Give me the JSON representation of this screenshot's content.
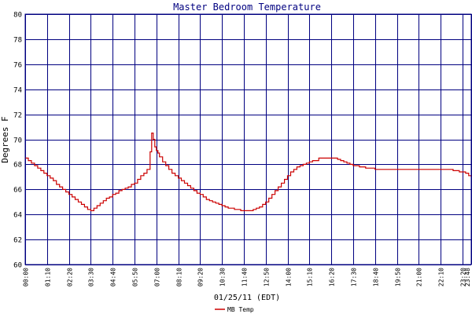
{
  "chart_data": {
    "type": "line",
    "title": "Master Bedroom Temperature",
    "xlabel": "01/25/11 (EDT)",
    "ylabel": "Degrees F",
    "xlim": [
      0,
      1428
    ],
    "ylim": [
      60,
      80
    ],
    "grid": true,
    "legend_position": "bottom-center",
    "yticks": [
      60,
      62,
      64,
      66,
      68,
      70,
      72,
      74,
      76,
      78,
      80
    ],
    "xticks": [
      {
        "t": 0,
        "label": "00:00"
      },
      {
        "t": 70,
        "label": "01:10"
      },
      {
        "t": 140,
        "label": "02:20"
      },
      {
        "t": 210,
        "label": "03:30"
      },
      {
        "t": 280,
        "label": "04:40"
      },
      {
        "t": 350,
        "label": "05:50"
      },
      {
        "t": 420,
        "label": "07:00"
      },
      {
        "t": 490,
        "label": "08:10"
      },
      {
        "t": 560,
        "label": "09:20"
      },
      {
        "t": 630,
        "label": "10:30"
      },
      {
        "t": 700,
        "label": "11:40"
      },
      {
        "t": 770,
        "label": "12:50"
      },
      {
        "t": 840,
        "label": "14:00"
      },
      {
        "t": 910,
        "label": "15:10"
      },
      {
        "t": 980,
        "label": "16:20"
      },
      {
        "t": 1050,
        "label": "17:30"
      },
      {
        "t": 1120,
        "label": "18:40"
      },
      {
        "t": 1190,
        "label": "19:50"
      },
      {
        "t": 1260,
        "label": "21:00"
      },
      {
        "t": 1330,
        "label": "22:10"
      },
      {
        "t": 1400,
        "label": "23:20"
      },
      {
        "t": 1428,
        "label": "23:48"
      }
    ],
    "series": [
      {
        "name": "MB Temp",
        "color": "#cc0000",
        "x": [
          0,
          10,
          20,
          30,
          40,
          50,
          60,
          70,
          80,
          90,
          100,
          110,
          120,
          130,
          140,
          150,
          160,
          170,
          180,
          190,
          200,
          210,
          220,
          230,
          240,
          250,
          260,
          270,
          280,
          290,
          300,
          310,
          320,
          330,
          340,
          350,
          360,
          370,
          380,
          390,
          400,
          405,
          410,
          415,
          420,
          425,
          430,
          440,
          450,
          460,
          470,
          480,
          490,
          500,
          510,
          520,
          530,
          540,
          550,
          560,
          570,
          580,
          590,
          600,
          610,
          620,
          630,
          640,
          650,
          660,
          670,
          680,
          690,
          700,
          710,
          720,
          730,
          740,
          750,
          760,
          770,
          780,
          790,
          800,
          810,
          820,
          830,
          840,
          850,
          860,
          870,
          880,
          890,
          900,
          910,
          920,
          930,
          940,
          950,
          960,
          970,
          980,
          990,
          1000,
          1010,
          1020,
          1030,
          1040,
          1050,
          1060,
          1070,
          1080,
          1090,
          1100,
          1110,
          1120,
          1130,
          1140,
          1150,
          1160,
          1170,
          1180,
          1190,
          1200,
          1210,
          1220,
          1230,
          1240,
          1250,
          1260,
          1270,
          1280,
          1290,
          1300,
          1310,
          1320,
          1330,
          1340,
          1350,
          1360,
          1370,
          1380,
          1390,
          1400,
          1410,
          1420,
          1428
        ],
        "y": [
          68.5,
          68.3,
          68.1,
          67.9,
          67.7,
          67.5,
          67.3,
          67.1,
          66.9,
          66.7,
          66.4,
          66.2,
          66.0,
          65.8,
          65.6,
          65.4,
          65.2,
          65.0,
          64.8,
          64.6,
          64.4,
          64.3,
          64.5,
          64.7,
          64.9,
          65.1,
          65.3,
          65.4,
          65.6,
          65.7,
          65.9,
          66.0,
          66.1,
          66.2,
          66.4,
          66.5,
          66.8,
          67.1,
          67.3,
          67.6,
          69.0,
          70.5,
          70.0,
          69.4,
          69.1,
          68.9,
          68.6,
          68.2,
          67.9,
          67.6,
          67.3,
          67.1,
          66.9,
          66.7,
          66.5,
          66.3,
          66.1,
          65.9,
          65.7,
          65.6,
          65.4,
          65.2,
          65.1,
          65.0,
          64.9,
          64.8,
          64.7,
          64.6,
          64.5,
          64.5,
          64.4,
          64.4,
          64.3,
          64.3,
          64.3,
          64.3,
          64.4,
          64.5,
          64.6,
          64.8,
          65.0,
          65.3,
          65.6,
          65.9,
          66.2,
          66.5,
          66.8,
          67.1,
          67.4,
          67.6,
          67.8,
          67.9,
          68.0,
          68.1,
          68.2,
          68.3,
          68.3,
          68.5,
          68.5,
          68.5,
          68.5,
          68.5,
          68.5,
          68.4,
          68.3,
          68.2,
          68.1,
          68.0,
          67.9,
          67.9,
          67.8,
          67.8,
          67.7,
          67.7,
          67.7,
          67.6,
          67.6,
          67.6,
          67.6,
          67.6,
          67.6,
          67.6,
          67.6,
          67.6,
          67.6,
          67.6,
          67.6,
          67.6,
          67.6,
          67.6,
          67.6,
          67.6,
          67.6,
          67.6,
          67.6,
          67.6,
          67.6,
          67.6,
          67.6,
          67.6,
          67.5,
          67.5,
          67.4,
          67.4,
          67.3,
          67.1,
          67.0
        ]
      }
    ]
  }
}
